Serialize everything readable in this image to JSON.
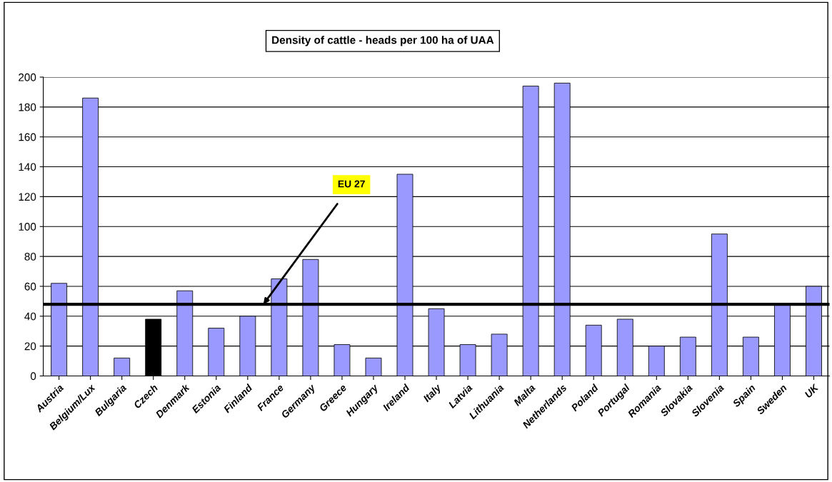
{
  "chart_data": {
    "type": "bar",
    "title": "Density of cattle - heads per 100 ha of UAA",
    "categories": [
      "Austria",
      "Belgium/Lux",
      "Bulgaria",
      "Czech",
      "Denmark",
      "Estonia",
      "Finland",
      "France",
      "Germany",
      "Greece",
      "Hungary",
      "Ireland",
      "Italy",
      "Latvia",
      "Lithuania",
      "Malta",
      "Netherlands",
      "Poland",
      "Portugal",
      "Romania",
      "Slovakia",
      "Slovenia",
      "Spain",
      "Sweden",
      "UK"
    ],
    "values": [
      62,
      186,
      12,
      38,
      57,
      32,
      40,
      65,
      78,
      21,
      12,
      135,
      45,
      21,
      28,
      194,
      196,
      34,
      38,
      20,
      26,
      95,
      26,
      48,
      60
    ],
    "colors": [
      "#9999ff",
      "#9999ff",
      "#9999ff",
      "#000000",
      "#9999ff",
      "#9999ff",
      "#9999ff",
      "#9999ff",
      "#9999ff",
      "#9999ff",
      "#9999ff",
      "#9999ff",
      "#9999ff",
      "#9999ff",
      "#9999ff",
      "#9999ff",
      "#9999ff",
      "#9999ff",
      "#9999ff",
      "#9999ff",
      "#9999ff",
      "#9999ff",
      "#9999ff",
      "#9999ff",
      "#9999ff"
    ],
    "ylim": [
      0,
      200
    ],
    "yticks": [
      0,
      20,
      40,
      60,
      80,
      100,
      120,
      140,
      160,
      180,
      200
    ],
    "grid": "y",
    "ref_lines": [
      {
        "axis": "y",
        "value": 48,
        "label": "EU 27",
        "color": "#000000"
      }
    ]
  }
}
